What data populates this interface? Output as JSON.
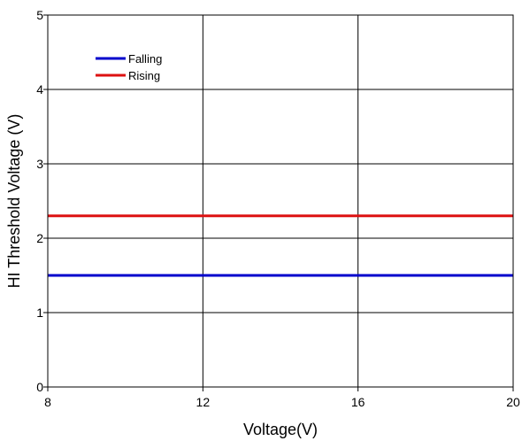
{
  "chart_data": {
    "type": "line",
    "title": "",
    "xlabel": "Voltage(V)",
    "ylabel": "HI Threshold Voltage (V)",
    "xlim": [
      8,
      20
    ],
    "ylim": [
      0,
      5
    ],
    "xticks": [
      8,
      12,
      16,
      20
    ],
    "yticks": [
      0,
      1,
      2,
      3,
      4,
      5
    ],
    "grid": true,
    "legend_position": "top-left",
    "series": [
      {
        "name": "Falling",
        "color": "#0000cc",
        "x": [
          8,
          20
        ],
        "y": [
          1.5,
          1.5
        ]
      },
      {
        "name": "Rising",
        "color": "#dd1111",
        "x": [
          8,
          20
        ],
        "y": [
          2.3,
          2.3
        ]
      }
    ]
  }
}
